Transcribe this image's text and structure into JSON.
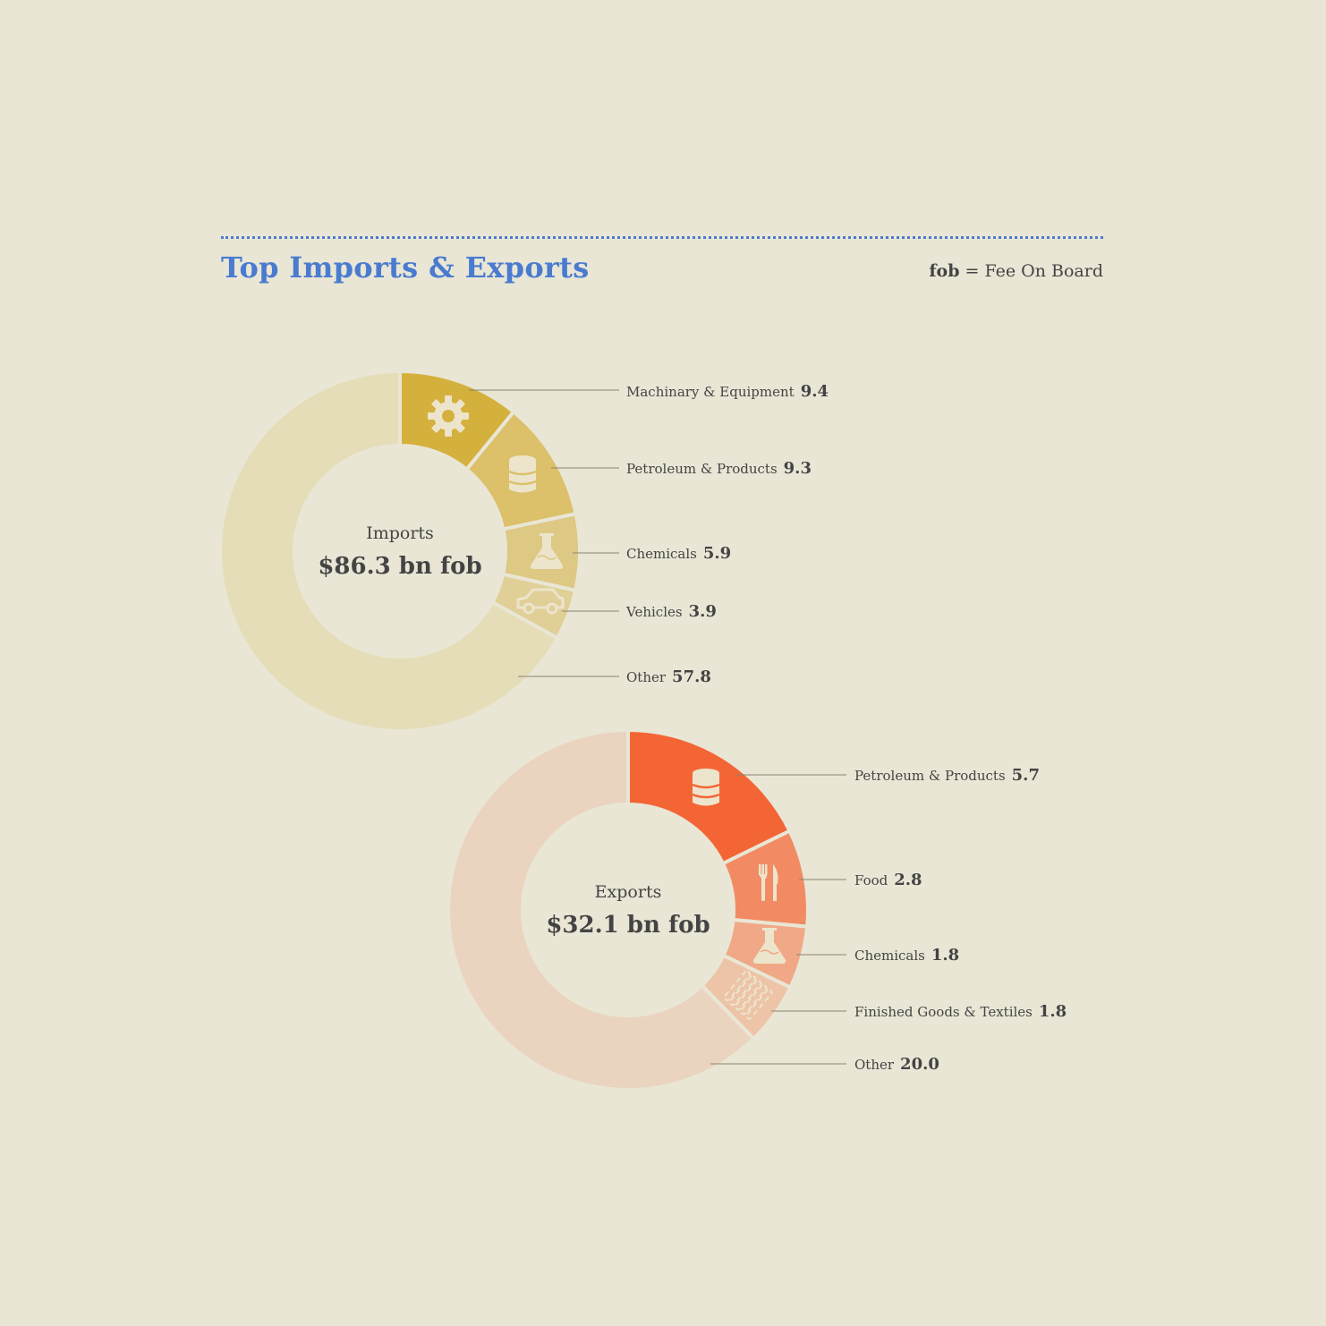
{
  "header": {
    "title": "Top Imports & Exports",
    "note_abbr": "fob",
    "note_text": "= Fee On Board"
  },
  "chart_data": [
    {
      "type": "pie",
      "variant": "donut",
      "center_label": "Imports",
      "center_value": "$86.3 bn fob",
      "categories": [
        "Machinary & Equipment",
        "Petroleum & Products",
        "Chemicals",
        "Vehicles",
        "Other"
      ],
      "values": [
        9.4,
        9.3,
        5.9,
        3.9,
        57.8
      ],
      "value_labels": [
        "9.4",
        "9.3",
        "5.9",
        "3.9",
        "57.8"
      ],
      "icons": [
        "gear-icon",
        "barrel-icon",
        "flask-icon",
        "car-icon",
        null
      ],
      "colors": [
        "#d4b03c",
        "#dcc06a",
        "#ddc884",
        "#e0cf97",
        "#e5ddb7"
      ]
    },
    {
      "type": "pie",
      "variant": "donut",
      "center_label": "Exports",
      "center_value": "$32.1 bn fob",
      "categories": [
        "Petroleum & Products",
        "Food",
        "Chemicals",
        "Finished Goods & Textiles",
        "Other"
      ],
      "values": [
        5.7,
        2.8,
        1.8,
        1.8,
        20.0
      ],
      "value_labels": [
        "5.7",
        "2.8",
        "1.8",
        "1.8",
        "20.0"
      ],
      "icons": [
        "barrel-icon",
        "fork-knife-icon",
        "flask-icon",
        "textile-icon",
        null
      ],
      "colors": [
        "#f46535",
        "#f28b63",
        "#f0a886",
        "#edc4a8",
        "#ead4bf"
      ]
    }
  ]
}
